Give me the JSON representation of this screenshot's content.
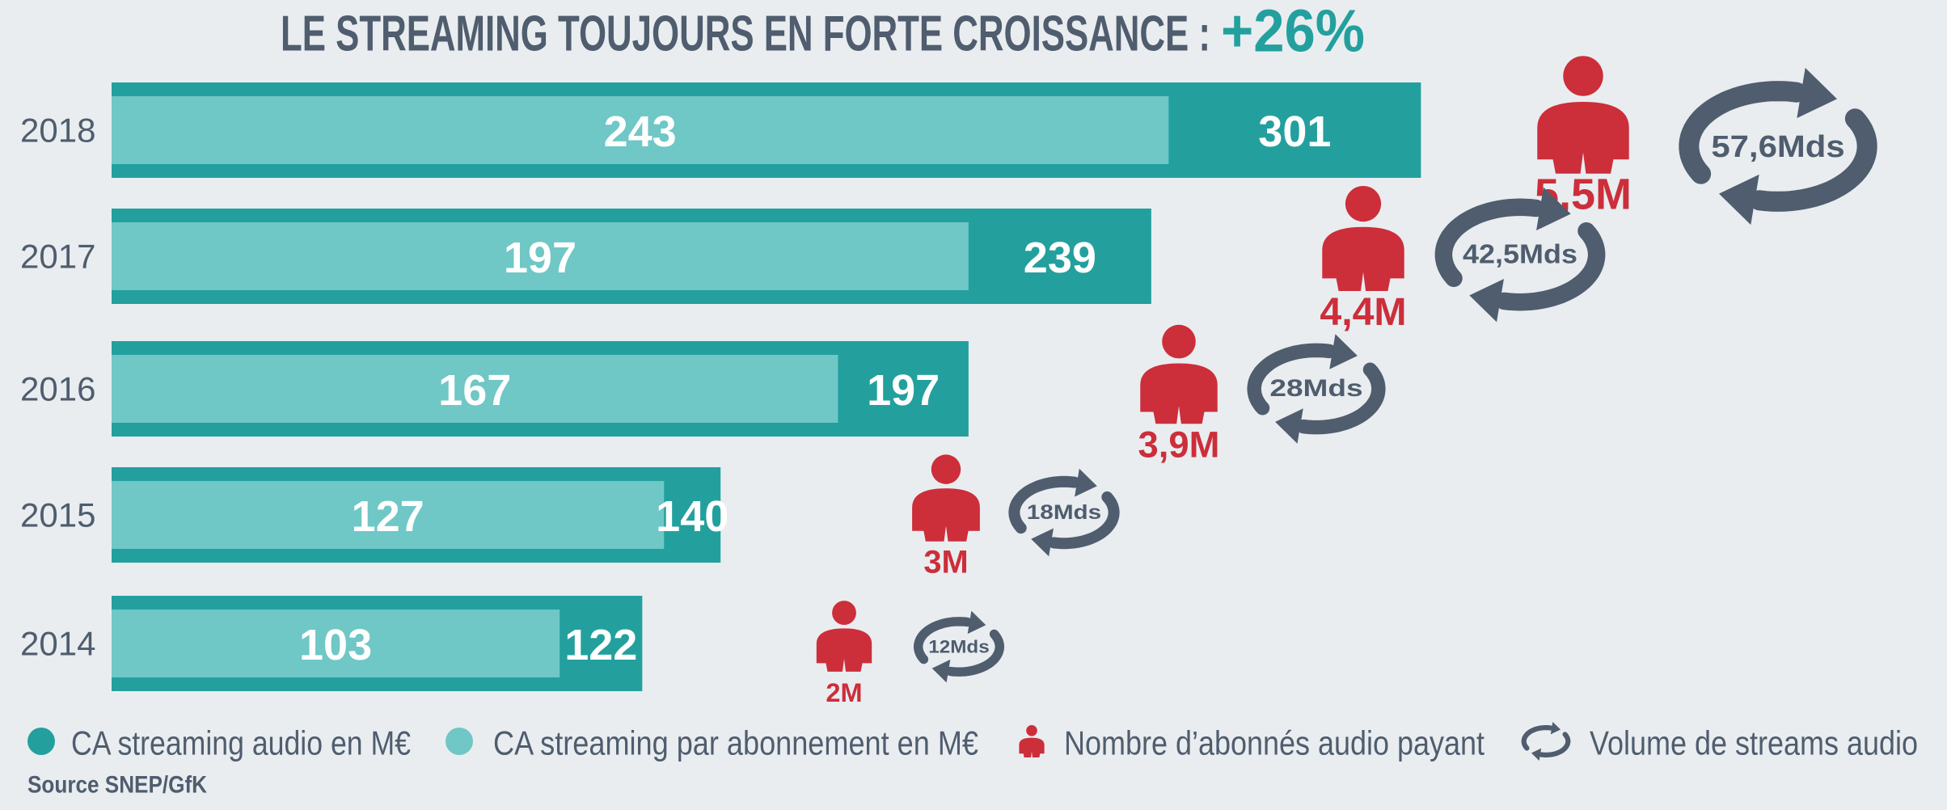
{
  "chart_data": {
    "type": "bar",
    "title": "LE STREAMING TOUJOURS EN FORTE CROISSANCE :",
    "annotation": "+26%",
    "categories": [
      "2018",
      "2017",
      "2016",
      "2015",
      "2014"
    ],
    "series": [
      {
        "name": "CA streaming audio en M€",
        "color": "#23a09e",
        "marker": "bar",
        "values": [
          301,
          239,
          197,
          140,
          122
        ]
      },
      {
        "name": "CA streaming par abonnement en M€",
        "color": "#6fc7c6",
        "marker": "bar",
        "values": [
          243,
          197,
          167,
          127,
          103
        ]
      },
      {
        "name": "Nombre d’abonnés audio payant",
        "color": "#cc2e3a",
        "marker": "person",
        "values": [
          5.5,
          4.4,
          3.9,
          3,
          2
        ],
        "value_labels": [
          "5,5M",
          "4,4M",
          "3,9M",
          "3M",
          "2M"
        ]
      },
      {
        "name": "Volume de streams audio",
        "color": "#4f5d6e",
        "marker": "cycle",
        "values": [
          57.6,
          42.5,
          28,
          18,
          12
        ],
        "value_labels": [
          "57,6Mds",
          "42,5Mds",
          "28Mds",
          "18Mds",
          "12Mds"
        ]
      }
    ],
    "source": "Source SNEP/GfK"
  }
}
